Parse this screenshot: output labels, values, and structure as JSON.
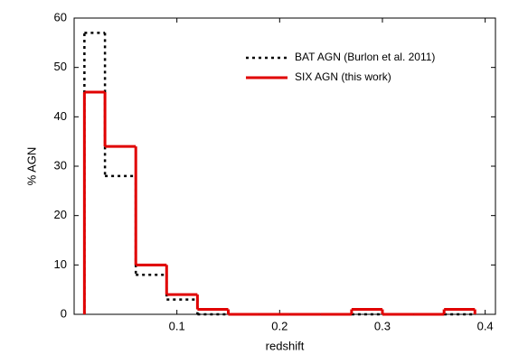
{
  "chart_data": {
    "type": "histogram",
    "x_label": "redshift",
    "y_label": "% AGN",
    "bins": [
      0.01,
      0.03,
      0.06,
      0.09,
      0.12,
      0.15,
      0.18,
      0.21,
      0.24,
      0.27,
      0.3,
      0.33,
      0.36,
      0.39
    ],
    "series": [
      {
        "name": "BAT AGN (Burlon et al. 2011)",
        "color": "#000000",
        "style": "dotted",
        "values": [
          57,
          28,
          8,
          3,
          0,
          0,
          0,
          0,
          0,
          0,
          0,
          0,
          0
        ]
      },
      {
        "name": "SIX AGN (this work)",
        "color": "#e00000",
        "style": "solid",
        "values": [
          45,
          34,
          10,
          4,
          1,
          0,
          0,
          0,
          0,
          1,
          0,
          0,
          1
        ]
      }
    ],
    "xlim": [
      0,
      0.41
    ],
    "ylim": [
      0,
      60
    ],
    "xticks": [
      0.1,
      0.2,
      0.3,
      0.4
    ],
    "yticks": [
      0,
      10,
      20,
      30,
      40,
      50,
      60
    ],
    "legend": "upper right"
  }
}
